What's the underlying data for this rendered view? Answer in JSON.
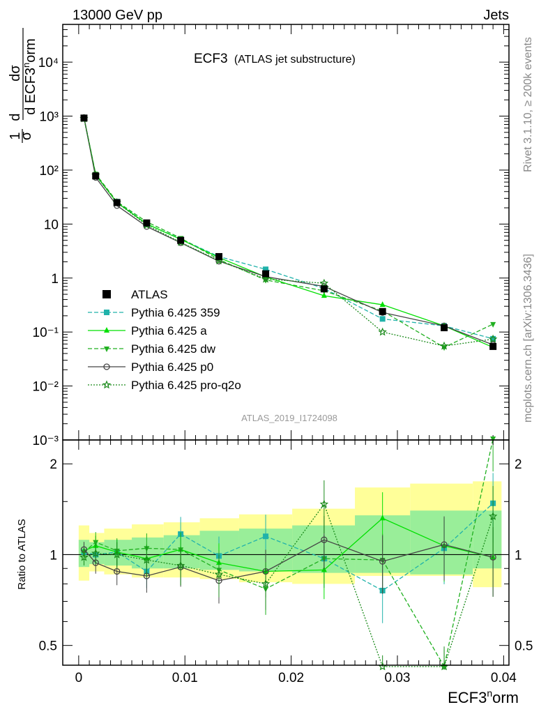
{
  "header": {
    "left": "13000 GeV pp",
    "right": "Jets"
  },
  "side_labels": {
    "rivet": "Rivet 3.1.10, ≥ 200k events",
    "mcplots": "mcplots.cern.ch [arXiv:1306.3436]"
  },
  "main_plot": {
    "title": "ECF3",
    "title_note": "(ATLAS jet substructure)",
    "analysis_id": "ATLAS_2019_I1724098",
    "ylabel": "(1/σ) dσ / d ECF3norm",
    "ytick_labels": [
      "10⁻³",
      "10⁻²",
      "10⁻¹",
      "1",
      "10",
      "10²",
      "10³",
      "10⁴"
    ]
  },
  "ratio_plot": {
    "ylabel": "Ratio to ATLAS",
    "ytick_labels": [
      "0.5",
      "1",
      "2"
    ],
    "ytick_labels_right": [
      "0.5",
      "1",
      "2"
    ]
  },
  "xaxis": {
    "label": "ECF3norm",
    "tick_labels": [
      "0",
      "0.01",
      "0.02",
      "0.03",
      "0.04"
    ]
  },
  "legend": [
    {
      "label": "ATLAS",
      "color": "#000000",
      "marker": "square-filled",
      "line": "none"
    },
    {
      "label": "Pythia 6.425 359",
      "color": "#20b2aa",
      "marker": "square-filled",
      "line": "dashed"
    },
    {
      "label": "Pythia 6.425 a",
      "color": "#00e000",
      "marker": "triangle-up-filled",
      "line": "solid"
    },
    {
      "label": "Pythia 6.425 dw",
      "color": "#20b020",
      "marker": "triangle-down-filled",
      "line": "dashed"
    },
    {
      "label": "Pythia 6.425 p0",
      "color": "#444444",
      "marker": "circle-open",
      "line": "solid"
    },
    {
      "label": "Pythia 6.425 pro-q2o",
      "color": "#1a8a1a",
      "marker": "star-open",
      "line": "dotted"
    }
  ],
  "chart_data": {
    "type": "line",
    "title": "ECF3 (ATLAS jet substructure)",
    "xlabel": "ECF3norm",
    "ylabel": "(1/σ) dσ / d ECF3norm",
    "xlim": [
      -0.0015,
      0.0405
    ],
    "ylim": [
      0.001,
      50000
    ],
    "yscale": "log",
    "ratio_ylim": [
      0.43,
      2.4
    ],
    "ratio_yscale": "log",
    "ratio_ylabel": "Ratio to ATLAS",
    "x": [
      0.0005,
      0.0016,
      0.0036,
      0.0064,
      0.0096,
      0.0132,
      0.0176,
      0.0231,
      0.0286,
      0.0344,
      0.039
    ],
    "bin_edges": [
      0.0,
      0.001,
      0.0024,
      0.005,
      0.008,
      0.0114,
      0.0151,
      0.0201,
      0.026,
      0.0312,
      0.0371,
      0.0398
    ],
    "reference": {
      "name": "ATLAS",
      "values": [
        920,
        78,
        25,
        10.5,
        5.0,
        2.5,
        1.2,
        0.63,
        0.24,
        0.12,
        0.054
      ],
      "band_inner": [
        [
          0.91,
          1.12
        ],
        [
          0.93,
          1.1
        ],
        [
          0.92,
          1.12
        ],
        [
          0.9,
          1.14
        ],
        [
          0.9,
          1.16
        ],
        [
          0.89,
          1.2
        ],
        [
          0.88,
          1.22
        ],
        [
          0.87,
          1.25
        ],
        [
          0.87,
          1.35
        ],
        [
          0.86,
          1.4
        ],
        [
          0.9,
          1.4
        ]
      ],
      "band_outer": [
        [
          0.82,
          1.25
        ],
        [
          0.88,
          1.18
        ],
        [
          0.86,
          1.22
        ],
        [
          0.84,
          1.26
        ],
        [
          0.84,
          1.28
        ],
        [
          0.83,
          1.32
        ],
        [
          0.81,
          1.36
        ],
        [
          0.8,
          1.42
        ],
        [
          0.85,
          1.67
        ],
        [
          0.85,
          1.72
        ],
        [
          0.78,
          1.75
        ]
      ]
    },
    "series": [
      {
        "name": "Pythia 6.425 359",
        "values": [
          920,
          80,
          26,
          10.0,
          5.3,
          2.5,
          1.45,
          0.64,
          0.175,
          0.13,
          0.075
        ],
        "ratio": [
          1.02,
          1.0,
          1.02,
          0.88,
          1.17,
          0.99,
          1.15,
          0.97,
          0.76,
          1.05,
          1.48
        ]
      },
      {
        "name": "Pythia 6.425 a",
        "values": [
          935,
          82,
          25,
          10.1,
          5.2,
          2.4,
          1.05,
          0.47,
          0.32,
          0.13,
          0.052
        ],
        "ratio": [
          1.03,
          1.07,
          1.02,
          0.97,
          1.04,
          0.94,
          0.88,
          0.89,
          1.32,
          1.07,
          0.98
        ]
      },
      {
        "name": "Pythia 6.425 dw",
        "values": [
          930,
          85,
          26,
          11.0,
          5.5,
          2.2,
          0.92,
          0.58,
          0.245,
          0.052,
          0.14
        ],
        "ratio": [
          1.02,
          1.1,
          1.03,
          1.05,
          1.04,
          0.89,
          0.77,
          0.97,
          0.96,
          0.39,
          2.55
        ]
      },
      {
        "name": "Pythia 6.425 p0",
        "values": [
          940,
          73,
          22,
          9.0,
          4.5,
          2.05,
          1.06,
          0.7,
          0.23,
          0.13,
          0.058
        ],
        "ratio": [
          1.04,
          0.94,
          0.88,
          0.85,
          0.91,
          0.82,
          0.88,
          1.12,
          0.95,
          1.08,
          0.98
        ]
      },
      {
        "name": "Pythia 6.425 pro-q2o",
        "values": [
          900,
          80,
          25,
          9.6,
          4.6,
          2.1,
          0.96,
          0.8,
          0.1,
          0.055,
          0.074
        ],
        "ratio": [
          0.98,
          1.01,
          1.0,
          0.96,
          0.92,
          0.86,
          0.8,
          1.47,
          0.38,
          0.4,
          1.34
        ]
      }
    ]
  }
}
